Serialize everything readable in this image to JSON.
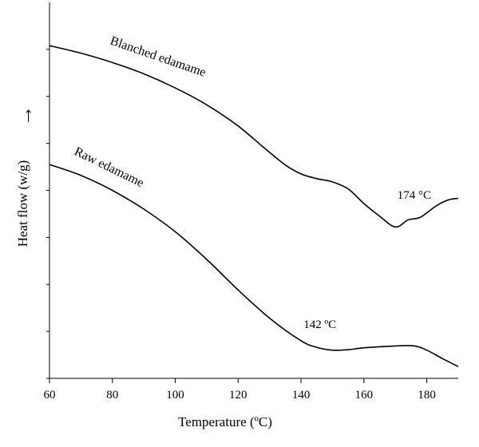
{
  "chart_data": {
    "type": "line",
    "xlabel": "Temperature (ºC)",
    "ylabel": "Heat flow (w/g)",
    "ylabel_arrow": "→",
    "xlim": [
      60,
      190
    ],
    "ylim": [
      0,
      8
    ],
    "xticks": [
      60,
      80,
      100,
      120,
      140,
      160,
      180
    ],
    "y_tick_count": 8,
    "grid": false,
    "series": [
      {
        "name": "Blanched edamame",
        "color": "#000000",
        "x": [
          60,
          70,
          80,
          90,
          100,
          110,
          120,
          128,
          135,
          140,
          145,
          150,
          155,
          160,
          165,
          170,
          174,
          178,
          183,
          187,
          190
        ],
        "y": [
          7.08,
          6.92,
          6.72,
          6.48,
          6.18,
          5.82,
          5.37,
          4.92,
          4.54,
          4.35,
          4.25,
          4.18,
          4.03,
          3.72,
          3.45,
          3.22,
          3.37,
          3.43,
          3.67,
          3.8,
          3.83
        ]
      },
      {
        "name": "Raw edamame",
        "color": "#000000",
        "x": [
          60,
          70,
          80,
          90,
          100,
          110,
          120,
          130,
          140,
          145,
          150,
          155,
          160,
          170,
          176,
          180,
          185,
          190
        ],
        "y": [
          4.55,
          4.32,
          4.0,
          3.6,
          3.12,
          2.53,
          1.88,
          1.28,
          0.8,
          0.66,
          0.6,
          0.61,
          0.65,
          0.69,
          0.69,
          0.6,
          0.42,
          0.25
        ]
      }
    ],
    "annotations": [
      {
        "text": "174 °C",
        "x": 176,
        "y": 3.82
      },
      {
        "text": "142 ºC",
        "x": 146,
        "y": 1.07
      }
    ]
  }
}
